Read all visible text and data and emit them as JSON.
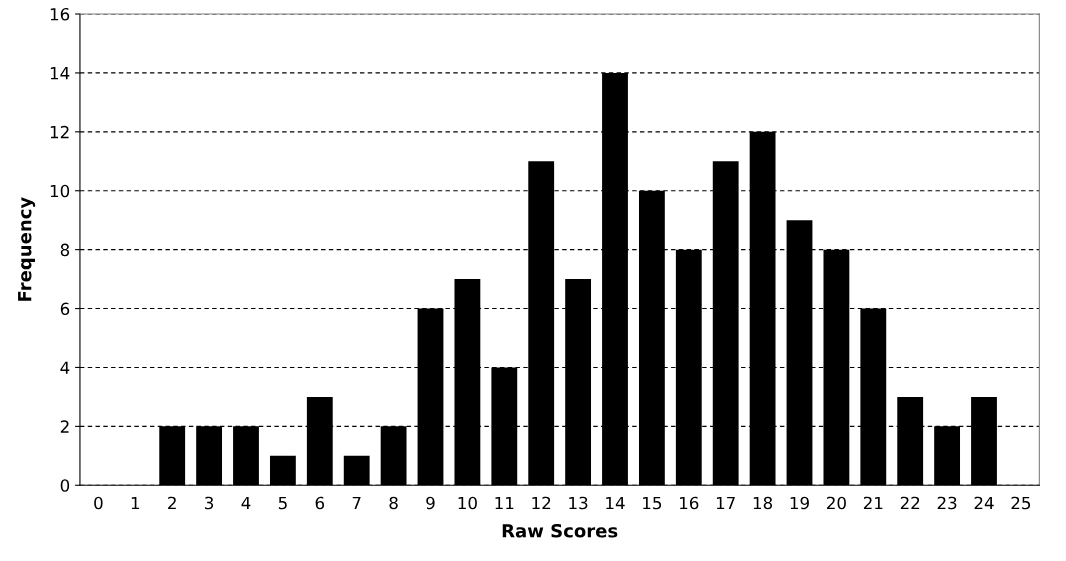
{
  "chart_data": {
    "type": "bar",
    "xlabel": "Raw Scores",
    "ylabel": "Frequency",
    "categories": [
      "0",
      "1",
      "2",
      "3",
      "4",
      "5",
      "6",
      "7",
      "8",
      "9",
      "10",
      "11",
      "12",
      "13",
      "14",
      "15",
      "16",
      "17",
      "18",
      "19",
      "20",
      "21",
      "22",
      "23",
      "24",
      "25"
    ],
    "values": [
      0,
      0,
      2,
      2,
      2,
      1,
      3,
      1,
      2,
      6,
      7,
      4,
      11,
      7,
      14,
      10,
      8,
      11,
      12,
      9,
      8,
      6,
      3,
      2,
      3,
      0
    ],
    "color": "#000000",
    "ylim": [
      0,
      16
    ],
    "yticks": [
      0,
      2,
      4,
      6,
      8,
      10,
      12,
      14,
      16
    ],
    "grid": "y",
    "legend": false
  }
}
